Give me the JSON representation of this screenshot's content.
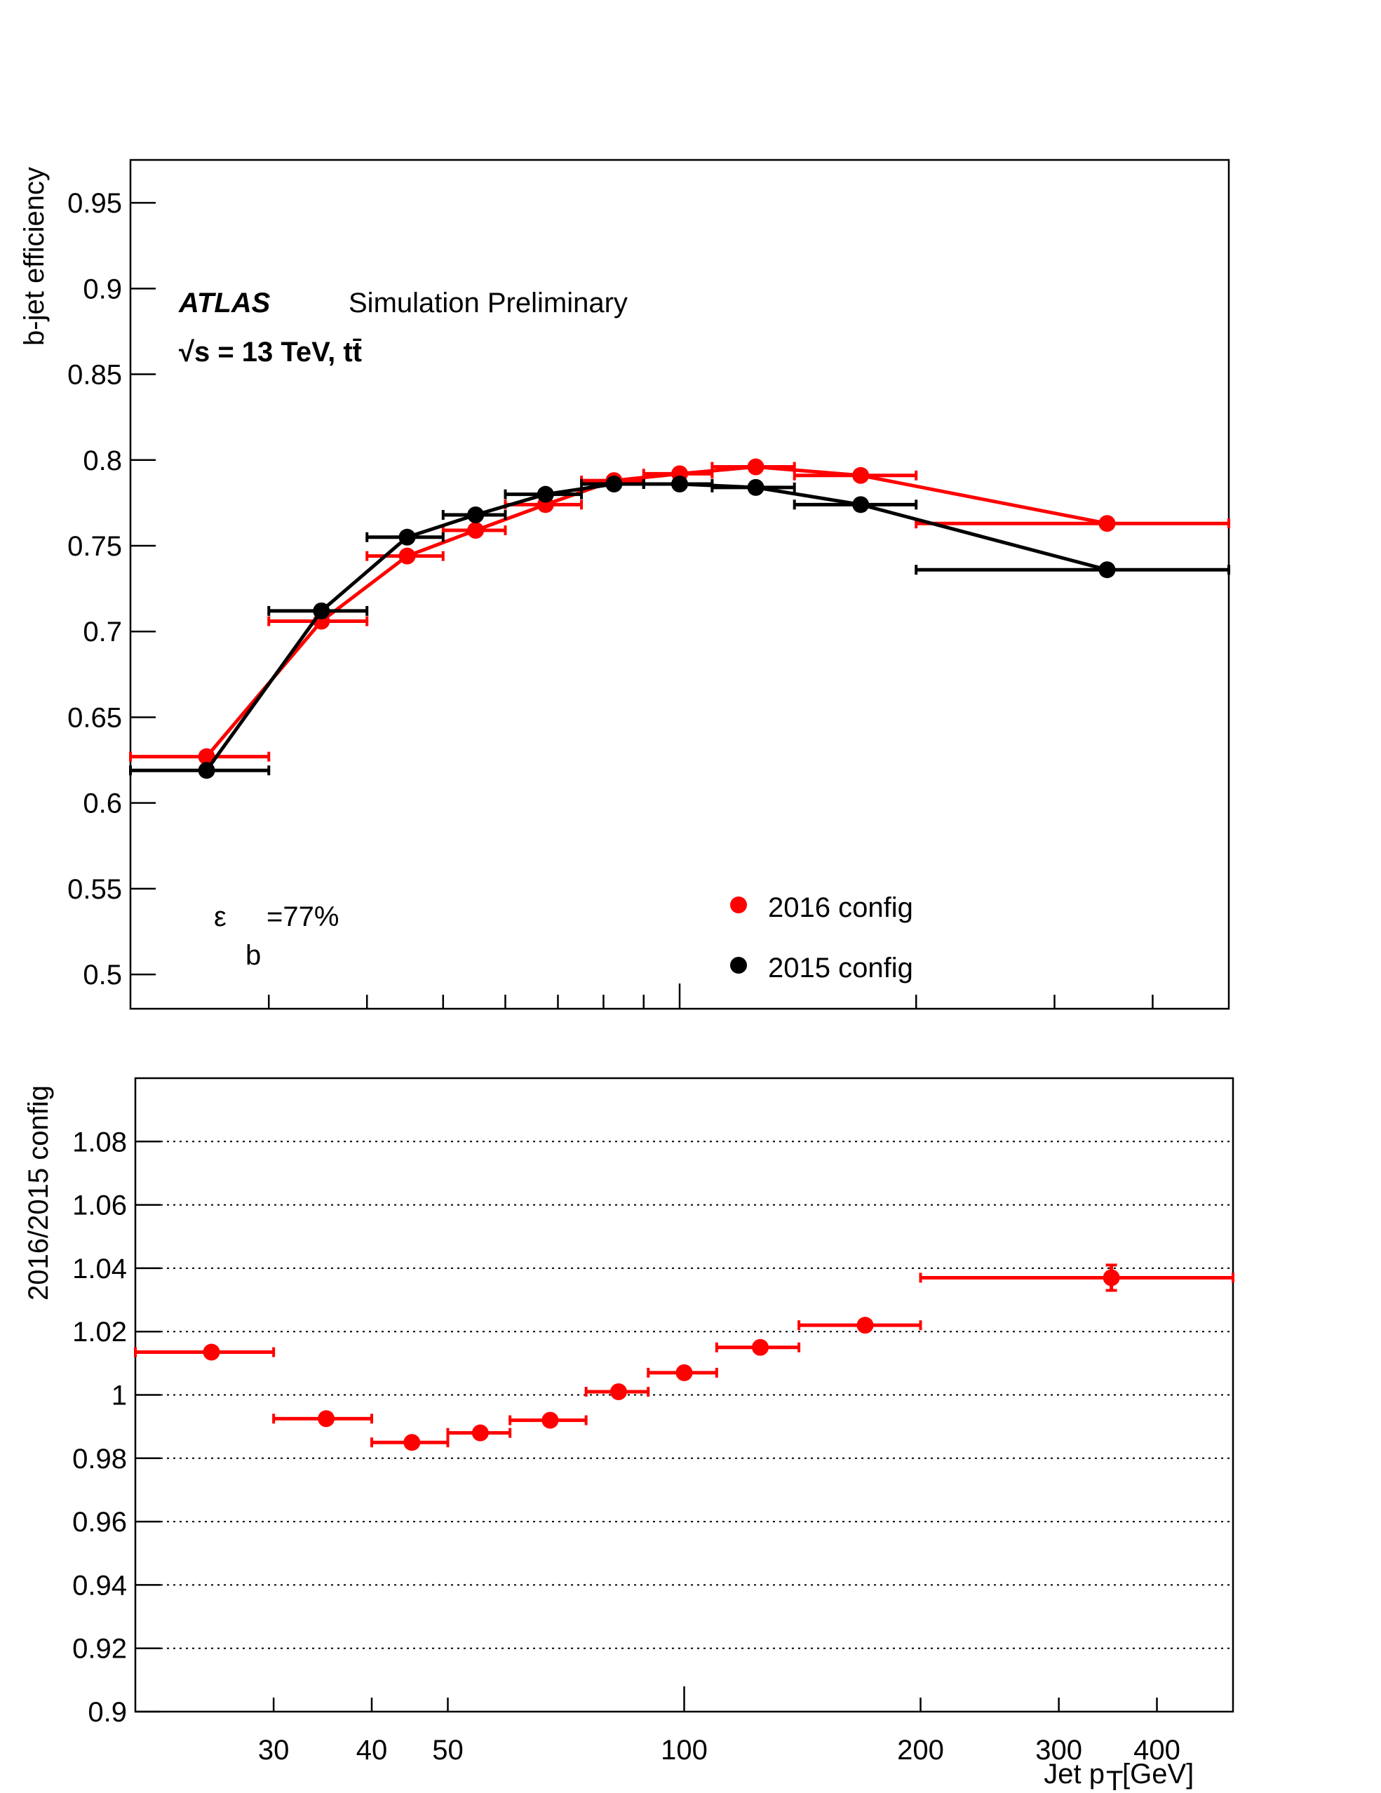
{
  "chart_data": [
    {
      "type": "line",
      "log_x": true,
      "ylabel": "b-jet efficiency",
      "annotation_bold": "ATLAS",
      "annotation": "Simulation Preliminary",
      "energy": "√s = 13 TeV, tt̄",
      "eff_main": "ε",
      "eff_sub": "b",
      "eff_value": "=77%",
      "xlim": [
        20,
        500
      ],
      "ylim": [
        0.48,
        0.975
      ],
      "xticks": [
        30,
        40,
        50,
        60,
        70,
        80,
        90,
        100,
        200,
        300,
        400
      ],
      "yticks": [
        0.5,
        0.55,
        0.6,
        0.65,
        0.7,
        0.75,
        0.8,
        0.85,
        0.9,
        0.95
      ],
      "bins": [
        20,
        30,
        40,
        50,
        60,
        75,
        90,
        110,
        140,
        200,
        500
      ],
      "x": [
        25,
        35,
        45,
        55,
        67.5,
        82.5,
        100,
        125,
        170,
        350
      ],
      "series": [
        {
          "name": "2016 config",
          "color": "#ff0000",
          "values": [
            0.627,
            0.706,
            0.744,
            0.759,
            0.774,
            0.788,
            0.792,
            0.796,
            0.791,
            0.763
          ]
        },
        {
          "name": "2015 config",
          "color": "#000000",
          "values": [
            0.619,
            0.712,
            0.755,
            0.768,
            0.78,
            0.786,
            0.786,
            0.784,
            0.774,
            0.736
          ]
        }
      ]
    },
    {
      "type": "scatter",
      "log_x": true,
      "ylabel": "2016/2015 config",
      "xlabel_main": "Jet p",
      "xlabel_sub": "T",
      "xlabel_unit": "[GeV]",
      "xlim": [
        20,
        500
      ],
      "ylim": [
        0.9,
        1.1
      ],
      "xticks": [
        30,
        40,
        50,
        100,
        200,
        300,
        400
      ],
      "yticks": [
        0.9,
        0.92,
        0.94,
        0.96,
        0.98,
        1,
        1.02,
        1.04,
        1.06,
        1.08
      ],
      "grid": true,
      "bins": [
        20,
        30,
        40,
        50,
        60,
        75,
        90,
        110,
        140,
        200,
        500
      ],
      "x": [
        25,
        35,
        45,
        55,
        67.5,
        82.5,
        100,
        125,
        170,
        350
      ],
      "series": [
        {
          "color": "#ff0000",
          "values": [
            1.0135,
            0.9925,
            0.985,
            0.988,
            0.992,
            1.001,
            1.007,
            1.015,
            1.022,
            1.037
          ],
          "yerr": [
            null,
            null,
            null,
            null,
            null,
            null,
            null,
            null,
            null,
            0.004
          ]
        }
      ]
    }
  ]
}
